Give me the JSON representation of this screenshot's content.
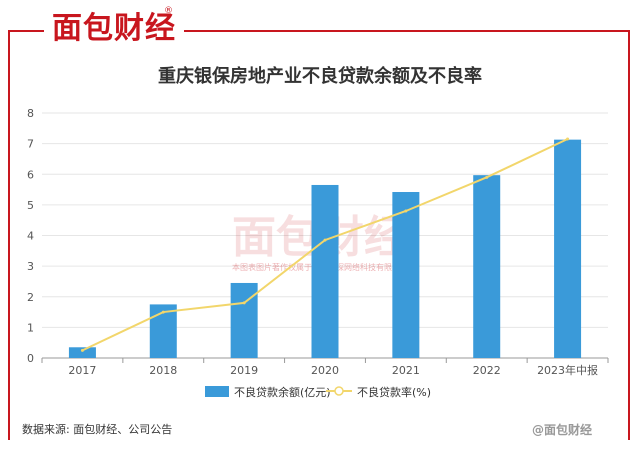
{
  "brand": {
    "logo_text": "面包财经",
    "registered_mark": "®"
  },
  "watermark": {
    "text": "面包财经",
    "notice": "本图表图片著作权属于上海钞探网络科技有限公司"
  },
  "footer": {
    "source": "数据来源: 面包财经、公司公告",
    "corner_mark": "@面包财经"
  },
  "colors": {
    "bar": "#3a9ad9",
    "line": "#f2d66b",
    "brand_red": "#c8161e"
  },
  "chart_data": {
    "type": "bar",
    "title": "重庆银保房地产业不良贷款余额及不良率",
    "categories": [
      "2017",
      "2018",
      "2019",
      "2020",
      "2021",
      "2022",
      "2023年中报"
    ],
    "series": [
      {
        "name": "不良贷款余额(亿元)",
        "type": "bar",
        "values": [
          0.35,
          1.75,
          2.45,
          5.65,
          5.42,
          5.97,
          7.13
        ]
      },
      {
        "name": "不良贷款率(%)",
        "type": "line",
        "values": [
          0.25,
          1.5,
          1.8,
          3.85,
          4.8,
          5.9,
          7.15
        ]
      }
    ],
    "ylim": [
      0,
      8
    ],
    "yticks": [
      "0",
      "1",
      "2",
      "3",
      "4",
      "5",
      "6",
      "7",
      "8"
    ],
    "grid": true,
    "legend_position": "bottom"
  }
}
